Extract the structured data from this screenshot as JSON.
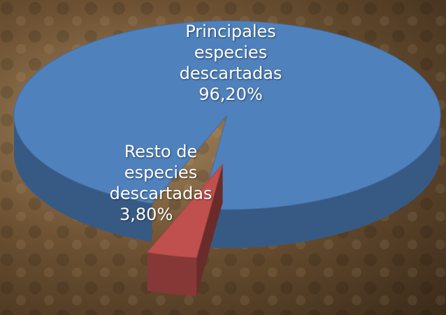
{
  "chart_data": {
    "type": "pie",
    "categories": [
      "Principales especies descartadas",
      "Resto de especies descartadas"
    ],
    "values": [
      96.2,
      3.8
    ],
    "value_labels": [
      "96,20%",
      "3,80%"
    ],
    "colors": [
      "#4f81bd",
      "#c0504d"
    ]
  }
}
